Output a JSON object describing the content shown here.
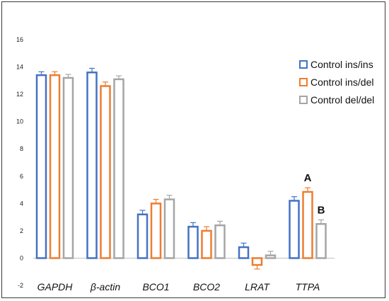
{
  "chart_data": {
    "type": "bar",
    "title": "",
    "xlabel": "",
    "ylabel": "",
    "ylim": [
      -2,
      16
    ],
    "yticks": [
      -2,
      0,
      2,
      4,
      6,
      8,
      10,
      12,
      14,
      16
    ],
    "categories": [
      "GAPDH",
      "β-actin",
      "BCO1",
      "BCO2",
      "LRAT",
      "TTPA"
    ],
    "series": [
      {
        "name": "Control ins/ins",
        "color": "#4472c4",
        "values": [
          13.4,
          13.6,
          3.2,
          2.3,
          0.8,
          4.2
        ],
        "errors": [
          0.25,
          0.3,
          0.3,
          0.3,
          0.3,
          0.3
        ]
      },
      {
        "name": "Control ins/del",
        "color": "#ed7d31",
        "values": [
          13.4,
          12.6,
          4.0,
          2.0,
          -0.5,
          4.85
        ],
        "errors": [
          0.25,
          0.3,
          0.3,
          0.3,
          0.3,
          0.3
        ]
      },
      {
        "name": "Control del/del",
        "color": "#a5a5a5",
        "values": [
          13.2,
          13.1,
          4.3,
          2.4,
          0.2,
          2.5
        ],
        "errors": [
          0.25,
          0.25,
          0.3,
          0.3,
          0.3,
          0.3
        ]
      }
    ],
    "legend_position": "right",
    "grid": false,
    "annotations": [
      {
        "text": "A",
        "category": "TTPA",
        "series": "Control ins/del"
      },
      {
        "text": "B",
        "category": "TTPA",
        "series": "Control del/del"
      }
    ]
  }
}
